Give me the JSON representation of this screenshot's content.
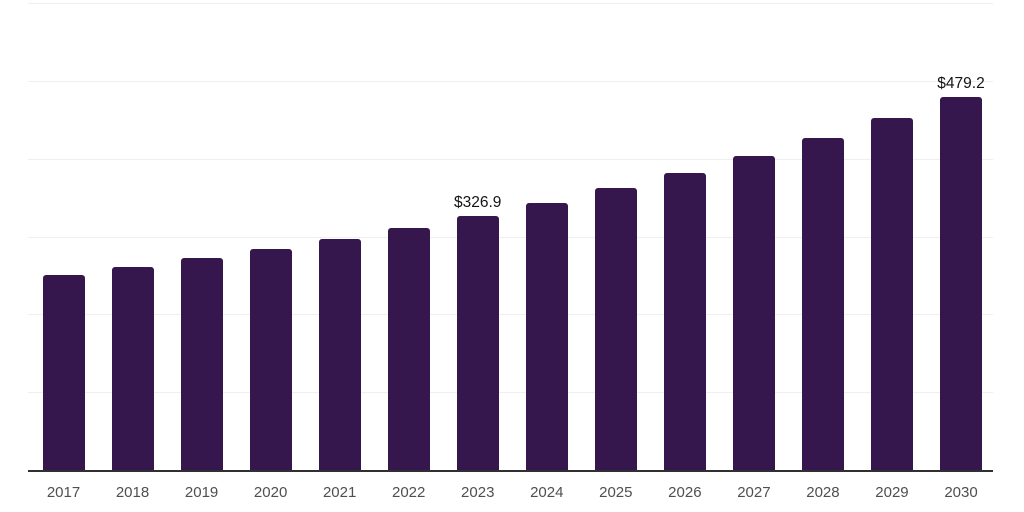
{
  "chart_data": {
    "type": "bar",
    "title": "",
    "xlabel": "",
    "ylabel": "",
    "categories": [
      "2017",
      "2018",
      "2019",
      "2020",
      "2021",
      "2022",
      "2023",
      "2024",
      "2025",
      "2026",
      "2027",
      "2028",
      "2029",
      "2030"
    ],
    "values": [
      250.9,
      261.0,
      272.5,
      284.0,
      296.8,
      311.0,
      326.9,
      343.0,
      362.2,
      381.4,
      403.2,
      426.2,
      451.8,
      479.2
    ],
    "annotations": [
      {
        "category": "2023",
        "text": "$326.9"
      },
      {
        "category": "2030",
        "text": "$479.2"
      }
    ],
    "ylim": [
      0,
      600
    ],
    "grid_step": 100,
    "grid": true,
    "legend": "none",
    "bar_color": "#35164d"
  },
  "colors": {
    "background": "#ffffff",
    "bar": "#35164d",
    "gridline": "#efefef",
    "axis_line": "#303030",
    "tick_label": "#4f4f4f",
    "data_label": "#141414"
  }
}
